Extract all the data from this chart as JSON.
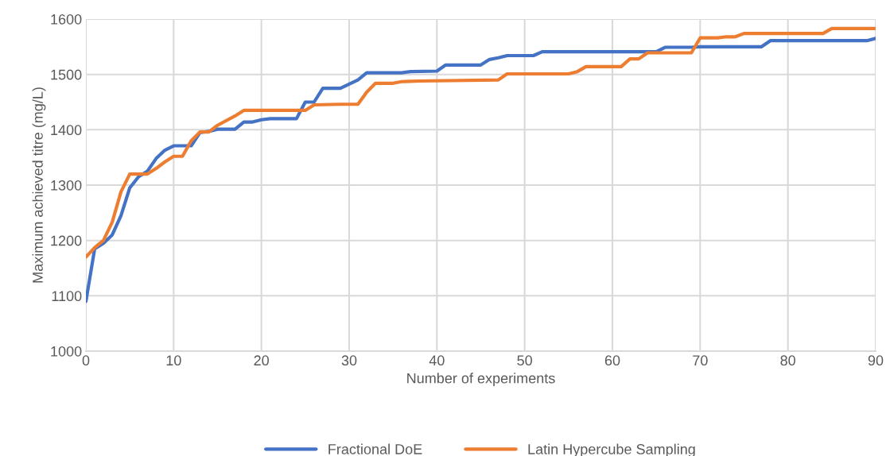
{
  "chart_data": {
    "type": "line",
    "xlabel": "Number of experiments",
    "ylabel": "Maximum achieved titre (mg/L)",
    "xlim": [
      0,
      90
    ],
    "xticks": [
      0,
      10,
      20,
      30,
      40,
      50,
      60,
      70,
      80,
      90
    ],
    "ylim": [
      1000,
      1600
    ],
    "yticks": [
      1000,
      1100,
      1200,
      1300,
      1400,
      1500,
      1600
    ],
    "grid": true,
    "legend": "bottom",
    "marker": "none",
    "line_style": "solid",
    "series": [
      {
        "name": "Fractional DoE",
        "color": "#4472c4",
        "x": [
          0,
          1,
          2,
          3,
          4,
          5,
          6,
          7,
          8,
          9,
          10,
          12,
          13,
          14,
          15,
          17,
          18,
          19,
          20,
          21,
          24,
          25,
          26,
          27,
          29,
          31,
          32,
          36,
          37,
          40,
          41,
          45,
          46,
          47,
          48,
          51,
          52,
          65,
          66,
          69,
          70,
          77,
          78,
          89,
          90
        ],
        "values": [
          1090,
          1185,
          1195,
          1210,
          1245,
          1295,
          1315,
          1325,
          1348,
          1363,
          1371,
          1371,
          1395,
          1397,
          1401,
          1401,
          1414,
          1414,
          1418,
          1420,
          1420,
          1450,
          1450,
          1475,
          1475,
          1490,
          1503,
          1503,
          1505,
          1506,
          1517,
          1517,
          1527,
          1530,
          1534,
          1534,
          1541,
          1541,
          1549,
          1549,
          1550,
          1550,
          1561,
          1561,
          1565
        ]
      },
      {
        "name": "Latin Hypercube Sampling",
        "color": "#ed7d31",
        "x": [
          0,
          1,
          2,
          3,
          4,
          5,
          7,
          8,
          9,
          10,
          11,
          12,
          13,
          14,
          15,
          17,
          18,
          25,
          26,
          29,
          31,
          32,
          33,
          35,
          36,
          38,
          47,
          48,
          55,
          56,
          57,
          61,
          62,
          63,
          64,
          69,
          70,
          72,
          73,
          74,
          75,
          84,
          85,
          90
        ],
        "values": [
          1170,
          1187,
          1200,
          1233,
          1288,
          1320,
          1320,
          1330,
          1342,
          1352,
          1352,
          1380,
          1396,
          1396,
          1408,
          1425,
          1435,
          1435,
          1445,
          1446,
          1446,
          1468,
          1484,
          1484,
          1487,
          1488,
          1490,
          1501,
          1501,
          1505,
          1514,
          1514,
          1528,
          1528,
          1539,
          1539,
          1566,
          1566,
          1568,
          1568,
          1574,
          1574,
          1583,
          1583
        ]
      }
    ]
  }
}
